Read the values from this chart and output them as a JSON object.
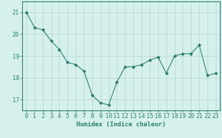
{
  "x": [
    0,
    1,
    2,
    3,
    4,
    5,
    6,
    7,
    8,
    9,
    10,
    11,
    12,
    13,
    14,
    15,
    16,
    17,
    18,
    19,
    20,
    21,
    22,
    23
  ],
  "y": [
    21.0,
    20.3,
    20.2,
    19.7,
    19.3,
    18.7,
    18.6,
    18.3,
    17.2,
    16.85,
    16.75,
    17.8,
    18.5,
    18.5,
    18.6,
    18.8,
    18.95,
    18.2,
    19.0,
    19.1,
    19.1,
    19.5,
    18.1,
    18.2
  ],
  "line_color": "#2a7d6e",
  "marker": "D",
  "marker_size": 2.2,
  "bg_color": "#d6f0ec",
  "grid_color": "#b8d8d4",
  "xlabel": "Humidex (Indice chaleur)",
  "ylim": [
    16.5,
    21.5
  ],
  "xlim": [
    -0.5,
    23.5
  ],
  "yticks": [
    17,
    18,
    19,
    20,
    21
  ],
  "xticks": [
    0,
    1,
    2,
    3,
    4,
    5,
    6,
    7,
    8,
    9,
    10,
    11,
    12,
    13,
    14,
    15,
    16,
    17,
    18,
    19,
    20,
    21,
    22,
    23
  ],
  "tick_color": "#2a7d6e",
  "axis_color": "#2a7d6e",
  "label_fontsize": 6.5,
  "tick_fontsize": 6.0
}
